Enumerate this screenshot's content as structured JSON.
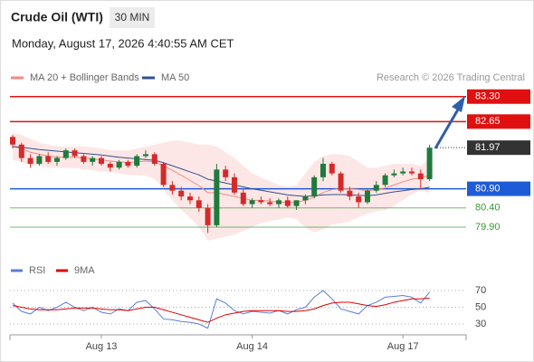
{
  "header": {
    "title": "Crude Oil (WTI)",
    "timeframe": "30 MIN",
    "datetime": "Monday, August 17, 2026 4:40:55 AM CET"
  },
  "source": "Research © 2026 Trading Central",
  "chart_data": [
    {
      "type": "candlestick",
      "categories": [
        null,
        null,
        null,
        null,
        null,
        null,
        null,
        null,
        null,
        null,
        "Aug 13",
        null,
        null,
        null,
        null,
        null,
        null,
        null,
        null,
        null,
        null,
        null,
        null,
        null,
        null,
        null,
        null,
        "Aug 14",
        null,
        null,
        null,
        null,
        null,
        null,
        null,
        null,
        null,
        null,
        null,
        null,
        null,
        null,
        null,
        null,
        "Aug 17",
        null,
        null,
        null
      ],
      "open": [
        82.25,
        82.05,
        81.7,
        81.55,
        81.75,
        81.6,
        81.7,
        81.9,
        81.75,
        81.6,
        81.7,
        81.55,
        81.45,
        81.6,
        81.5,
        81.75,
        81.8,
        81.55,
        81.0,
        80.85,
        80.7,
        80.6,
        80.4,
        79.95,
        81.4,
        81.2,
        80.8,
        80.5,
        80.6,
        80.55,
        80.5,
        80.6,
        80.45,
        80.6,
        80.7,
        81.2,
        81.55,
        81.3,
        80.85,
        80.7,
        80.55,
        80.85,
        81.0,
        81.25,
        81.3,
        81.35,
        81.3,
        81.15
      ],
      "high": [
        82.3,
        82.1,
        81.8,
        81.8,
        81.85,
        81.75,
        81.95,
        81.95,
        81.8,
        81.75,
        81.75,
        81.6,
        81.65,
        81.65,
        81.8,
        81.9,
        81.85,
        81.6,
        81.1,
        80.95,
        80.8,
        80.7,
        80.5,
        81.55,
        81.5,
        81.3,
        80.9,
        80.65,
        80.7,
        80.65,
        80.65,
        80.7,
        80.6,
        80.75,
        81.25,
        81.7,
        81.6,
        81.35,
        80.95,
        80.8,
        80.9,
        81.1,
        81.3,
        81.4,
        81.45,
        81.45,
        81.4,
        82.05
      ],
      "low": [
        81.95,
        81.6,
        81.45,
        81.5,
        81.55,
        81.5,
        81.65,
        81.7,
        81.55,
        81.5,
        81.5,
        81.35,
        81.4,
        81.45,
        81.45,
        81.7,
        81.5,
        80.95,
        80.75,
        80.6,
        80.5,
        80.3,
        79.75,
        79.9,
        81.1,
        80.75,
        80.45,
        80.4,
        80.5,
        80.45,
        80.4,
        80.4,
        80.35,
        80.5,
        80.65,
        81.1,
        81.25,
        80.8,
        80.6,
        80.4,
        80.5,
        80.8,
        80.95,
        81.2,
        81.25,
        81.25,
        80.9,
        81.1
      ],
      "close": [
        82.05,
        81.7,
        81.55,
        81.75,
        81.6,
        81.7,
        81.9,
        81.75,
        81.6,
        81.7,
        81.55,
        81.45,
        81.6,
        81.5,
        81.75,
        81.8,
        81.55,
        81.0,
        80.85,
        80.7,
        80.6,
        80.4,
        79.95,
        81.4,
        81.2,
        80.8,
        80.5,
        80.6,
        80.55,
        80.5,
        80.6,
        80.45,
        80.6,
        80.7,
        81.2,
        81.55,
        81.3,
        80.85,
        80.7,
        80.55,
        80.85,
        81.0,
        81.25,
        81.3,
        81.35,
        81.3,
        81.15,
        81.97
      ],
      "up_color": "#1f7a3c",
      "down_color": "#d42a2a",
      "series": [
        {
          "name": "MA 20 + Bollinger Bands",
          "color": "#f28b82",
          "band_color": "#fde1e0",
          "values": [
            82.0,
            81.95,
            81.85,
            81.8,
            81.75,
            81.72,
            81.72,
            81.72,
            81.7,
            81.68,
            81.65,
            81.62,
            81.6,
            81.58,
            81.6,
            81.62,
            81.6,
            81.5,
            81.38,
            81.25,
            81.12,
            80.98,
            80.8,
            80.8,
            80.75,
            80.7,
            80.65,
            80.6,
            80.6,
            80.58,
            80.55,
            80.55,
            80.55,
            80.6,
            80.68,
            80.8,
            80.88,
            80.9,
            80.9,
            80.88,
            80.85,
            80.88,
            80.92,
            81.0,
            81.08,
            81.15,
            81.18,
            81.25
          ],
          "upper": [
            82.35,
            82.3,
            82.2,
            82.1,
            82.05,
            82.0,
            82.0,
            82.0,
            82.0,
            81.98,
            81.95,
            81.9,
            81.9,
            81.9,
            81.95,
            82.0,
            82.05,
            82.1,
            82.15,
            82.15,
            82.1,
            82.05,
            82.05,
            82.0,
            81.85,
            81.7,
            81.5,
            81.3,
            81.2,
            81.1,
            81.0,
            80.95,
            81.0,
            81.3,
            81.6,
            81.75,
            81.8,
            81.8,
            81.75,
            81.6,
            81.45,
            81.45,
            81.5,
            81.55,
            81.55,
            81.55,
            81.5,
            81.7
          ],
          "lower": [
            81.65,
            81.6,
            81.5,
            81.5,
            81.45,
            81.44,
            81.44,
            81.44,
            81.4,
            81.38,
            81.35,
            81.34,
            81.3,
            81.26,
            81.25,
            81.24,
            81.15,
            80.9,
            80.6,
            80.35,
            80.14,
            79.9,
            79.55,
            79.6,
            79.65,
            79.7,
            79.8,
            79.9,
            80.0,
            80.06,
            80.1,
            80.15,
            80.1,
            79.9,
            79.76,
            79.85,
            79.96,
            80.0,
            80.05,
            80.16,
            80.25,
            80.31,
            80.34,
            80.45,
            80.61,
            80.75,
            80.86,
            80.8
          ]
        },
        {
          "name": "MA 50",
          "color": "#35508f",
          "values": [
            82.0,
            81.98,
            81.95,
            81.92,
            81.9,
            81.88,
            81.86,
            81.84,
            81.82,
            81.8,
            81.78,
            81.75,
            81.72,
            81.7,
            81.68,
            81.66,
            81.64,
            81.58,
            81.5,
            81.42,
            81.34,
            81.26,
            81.15,
            81.1,
            81.05,
            81.0,
            80.95,
            80.9,
            80.86,
            80.82,
            80.78,
            80.74,
            80.72,
            80.7,
            80.72,
            80.74,
            80.75,
            80.75,
            80.74,
            80.73,
            80.72,
            80.74,
            80.78,
            80.82,
            80.85,
            80.88,
            80.9,
            80.94
          ]
        }
      ],
      "levels": [
        {
          "value": 83.3,
          "label": "83.30",
          "color": "#e01010",
          "style": "boxed"
        },
        {
          "value": 82.65,
          "label": "82.65",
          "color": "#e01010",
          "style": "boxed"
        },
        {
          "value": 81.97,
          "label": "81.97",
          "color": "#333333",
          "style": "dotted"
        },
        {
          "value": 80.9,
          "label": "80.90",
          "color": "#1e5bd6",
          "style": "boxed"
        },
        {
          "value": 80.4,
          "label": "80.40",
          "color": "#3a9a3a",
          "style": "plain"
        },
        {
          "value": 79.9,
          "label": "79.90",
          "color": "#3a9a3a",
          "style": "plain"
        }
      ],
      "ylim": [
        79.5,
        83.6
      ]
    },
    {
      "type": "line",
      "series": [
        {
          "name": "RSI",
          "color": "#5b7fd6",
          "values": [
            55,
            45,
            42,
            50,
            46,
            50,
            56,
            50,
            46,
            50,
            44,
            42,
            48,
            46,
            56,
            58,
            48,
            36,
            35,
            33,
            32,
            30,
            25,
            60,
            55,
            46,
            42,
            45,
            44,
            43,
            46,
            42,
            47,
            50,
            62,
            70,
            60,
            48,
            45,
            42,
            52,
            56,
            62,
            63,
            64,
            62,
            55,
            68
          ]
        },
        {
          "name": "9MA",
          "color": "#e00000",
          "values": [
            52,
            50,
            48,
            47,
            47,
            47,
            48,
            49,
            49,
            49,
            48,
            47,
            47,
            46,
            48,
            50,
            50,
            47,
            44,
            41,
            38,
            35,
            32,
            37,
            41,
            43,
            45,
            46,
            46,
            46,
            46,
            45,
            45,
            46,
            48,
            52,
            55,
            56,
            56,
            54,
            52,
            51,
            53,
            56,
            58,
            60,
            60,
            61
          ]
        }
      ],
      "ylim": [
        20,
        80
      ],
      "yticks": [
        70,
        50,
        30
      ]
    }
  ]
}
